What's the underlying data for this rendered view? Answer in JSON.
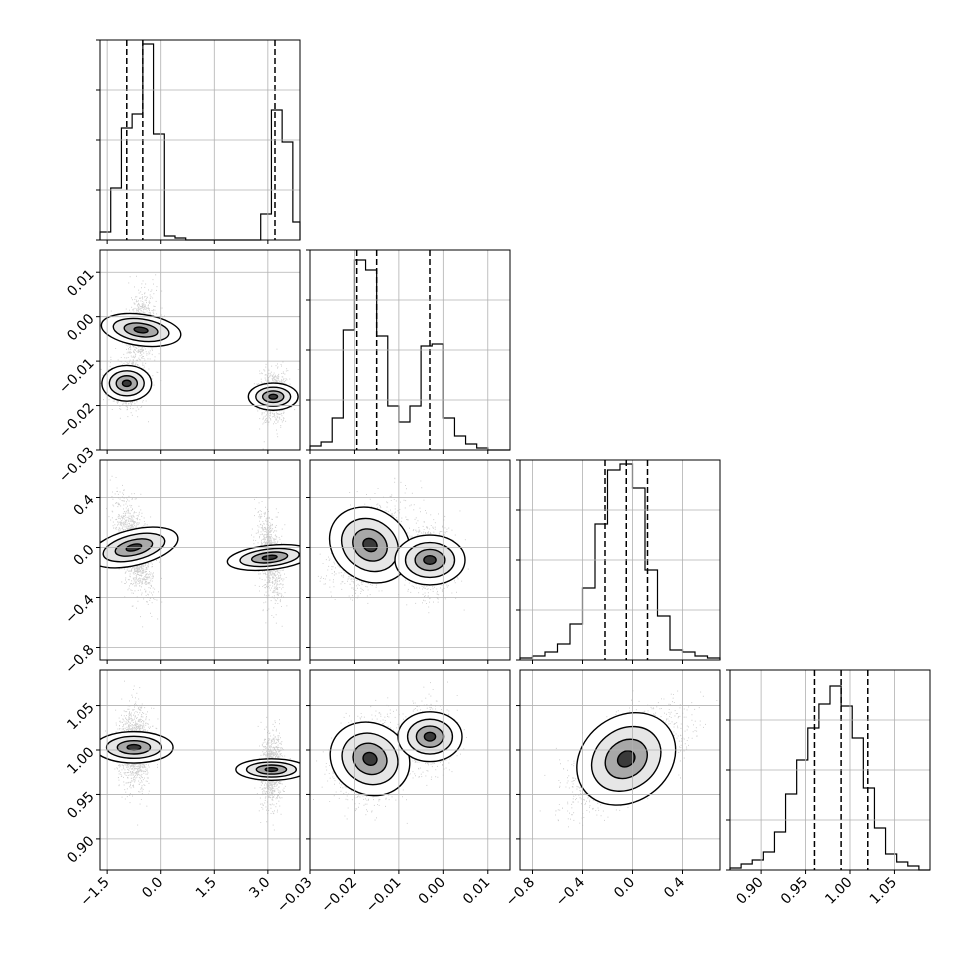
{
  "chart_data": {
    "type": "corner",
    "grid": true,
    "params": [
      {
        "range": [
          -1.7,
          3.9
        ],
        "ticks": [
          -1.5,
          0.0,
          1.5,
          3.0
        ],
        "tick_labels": [
          "−1.5",
          "0.0",
          "1.5",
          "3.0"
        ],
        "quantiles": [
          -0.95,
          -0.5,
          3.2
        ],
        "histogram": {
          "bin_edges": [
            -1.7,
            -1.4,
            -1.1,
            -0.8,
            -0.5,
            -0.2,
            0.1,
            0.4,
            0.7,
            1.0,
            1.3,
            1.6,
            1.9,
            2.2,
            2.5,
            2.8,
            3.1,
            3.4,
            3.7,
            3.9
          ],
          "counts": [
            0.04,
            0.26,
            0.56,
            0.63,
            0.98,
            0.53,
            0.02,
            0.01,
            0.0,
            0.0,
            0.0,
            0.0,
            0.0,
            0.0,
            0.0,
            0.13,
            0.65,
            0.49,
            0.09
          ]
        }
      },
      {
        "range": [
          -0.03,
          0.015
        ],
        "ticks": [
          -0.03,
          -0.02,
          -0.01,
          0.0,
          0.01
        ],
        "tick_labels": [
          "−0.03",
          "−0.02",
          "−0.01",
          "0.00",
          "0.01"
        ],
        "quantiles": [
          -0.0195,
          -0.015,
          -0.003
        ],
        "histogram": {
          "bin_edges": [
            -0.03,
            -0.0275,
            -0.025,
            -0.0225,
            -0.02,
            -0.0175,
            -0.015,
            -0.0125,
            -0.01,
            -0.0075,
            -0.005,
            -0.0025,
            0.0,
            0.0025,
            0.005,
            0.0075,
            0.01,
            0.0125,
            0.015
          ],
          "counts": [
            0.02,
            0.04,
            0.16,
            0.6,
            0.95,
            0.9,
            0.57,
            0.22,
            0.14,
            0.22,
            0.52,
            0.53,
            0.16,
            0.07,
            0.03,
            0.01,
            0.0,
            0.0
          ]
        }
      },
      {
        "range": [
          -0.9,
          0.7
        ],
        "ticks": [
          -0.8,
          -0.4,
          0.0,
          0.4
        ],
        "tick_labels": [
          "−0.8",
          "−0.4",
          "0.0",
          "0.4"
        ],
        "quantiles": [
          -0.22,
          -0.05,
          0.12
        ],
        "histogram": {
          "bin_edges": [
            -0.9,
            -0.8,
            -0.7,
            -0.6,
            -0.5,
            -0.4,
            -0.3,
            -0.2,
            -0.1,
            0.0,
            0.1,
            0.2,
            0.3,
            0.4,
            0.5,
            0.6,
            0.7
          ],
          "counts": [
            0.01,
            0.02,
            0.04,
            0.08,
            0.18,
            0.36,
            0.68,
            0.95,
            0.98,
            0.86,
            0.45,
            0.22,
            0.05,
            0.04,
            0.02,
            0.01
          ]
        }
      },
      {
        "range": [
          0.865,
          1.09
        ],
        "ticks": [
          0.9,
          0.95,
          1.0,
          1.05
        ],
        "tick_labels": [
          "0.90",
          "0.95",
          "1.00",
          "1.05"
        ],
        "quantiles": [
          0.96,
          0.99,
          1.02
        ],
        "histogram": {
          "bin_edges": [
            0.865,
            0.8775,
            0.89,
            0.9025,
            0.915,
            0.9275,
            0.94,
            0.9525,
            0.965,
            0.9775,
            0.99,
            1.0025,
            1.015,
            1.0275,
            1.04,
            1.0525,
            1.065,
            1.0775,
            1.09
          ],
          "counts": [
            0.01,
            0.03,
            0.05,
            0.09,
            0.19,
            0.38,
            0.55,
            0.71,
            0.83,
            0.92,
            0.82,
            0.66,
            0.41,
            0.21,
            0.08,
            0.04,
            0.02,
            0.0
          ]
        }
      }
    ],
    "pairs": [
      {
        "row": 1,
        "col": 0,
        "clusters": [
          {
            "mean": [
              -0.55,
              -0.003
            ],
            "sd": [
              0.22,
              0.0045
            ],
            "corr": 0.3,
            "weight": 0.35
          },
          {
            "mean": [
              -0.95,
              -0.015
            ],
            "sd": [
              0.25,
              0.0028
            ],
            "corr": 0.0,
            "weight": 0.25
          },
          {
            "mean": [
              3.15,
              -0.018
            ],
            "sd": [
              0.19,
              0.0028
            ],
            "corr": 0.0,
            "weight": 0.4
          }
        ]
      },
      {
        "row": 2,
        "col": 0,
        "clusters": [
          {
            "mean": [
              -0.75,
              0.0
            ],
            "sd": [
              0.25,
              0.18
            ],
            "corr": -0.55,
            "weight": 0.6
          },
          {
            "mean": [
              3.05,
              -0.08
            ],
            "sd": [
              0.17,
              0.17
            ],
            "corr": -0.35,
            "weight": 0.4
          }
        ]
      },
      {
        "row": 2,
        "col": 1,
        "clusters": [
          {
            "mean": [
              -0.0165,
              0.02
            ],
            "sd": [
              0.004,
              0.17
            ],
            "corr": 0.45,
            "weight": 0.6
          },
          {
            "mean": [
              -0.003,
              -0.1
            ],
            "sd": [
              0.0028,
              0.14
            ],
            "corr": 0.0,
            "weight": 0.4
          }
        ]
      },
      {
        "row": 3,
        "col": 0,
        "clusters": [
          {
            "mean": [
              -0.75,
              1.003
            ],
            "sd": [
              0.22,
              0.022
            ],
            "corr": 0.0,
            "weight": 0.6
          },
          {
            "mean": [
              3.1,
              0.978
            ],
            "sd": [
              0.15,
              0.02
            ],
            "corr": 0.0,
            "weight": 0.4
          }
        ]
      },
      {
        "row": 3,
        "col": 1,
        "clusters": [
          {
            "mean": [
              -0.0165,
              0.99
            ],
            "sd": [
              0.004,
              0.023
            ],
            "corr": 0.2,
            "weight": 0.6
          },
          {
            "mean": [
              -0.003,
              1.015
            ],
            "sd": [
              0.0028,
              0.018
            ],
            "corr": 0.0,
            "weight": 0.4
          }
        ]
      },
      {
        "row": 3,
        "col": 2,
        "clusters": [
          {
            "mean": [
              -0.05,
              0.99
            ],
            "sd": [
              0.21,
              0.024
            ],
            "corr": 0.6,
            "weight": 1.0
          }
        ]
      }
    ]
  }
}
